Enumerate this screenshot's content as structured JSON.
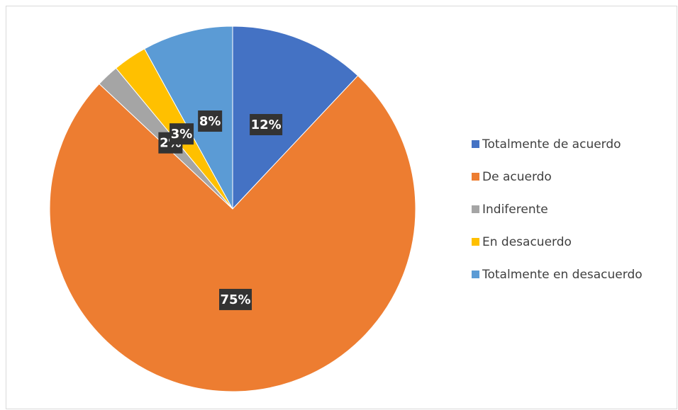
{
  "chart_data": {
    "type": "pie",
    "categories": [
      "Totalmente de acuerdo",
      "De acuerdo",
      "Indiferente",
      "En desacuerdo",
      "Totalmente en desacuerdo"
    ],
    "values": [
      12,
      75,
      2,
      3,
      8
    ],
    "value_labels": [
      "12%",
      "75%",
      "2%",
      "3%",
      "8%"
    ],
    "colors": [
      "#4472c4",
      "#ed7d31",
      "#a5a5a5",
      "#ffc000",
      "#5b9bd5"
    ],
    "legend": "right"
  }
}
